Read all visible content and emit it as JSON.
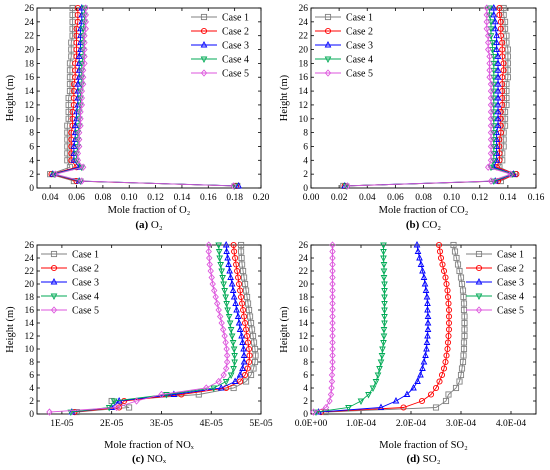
{
  "chart_data": [
    {
      "type": "line",
      "caption_letter": "(a)",
      "caption_text": "O₂",
      "xlabel": "Mole fraction of O₂",
      "ylabel": "Height (m)",
      "xlim": [
        0.03,
        0.2
      ],
      "ylim": [
        0,
        26
      ],
      "xticks": [
        0.04,
        0.06,
        0.08,
        0.1,
        0.12,
        0.14,
        0.16,
        0.18,
        0.2
      ],
      "xtick_labels": [
        "0.04",
        "0.06",
        "0.08",
        "0.10",
        "0.12",
        "0.14",
        "0.16",
        "0.18",
        "0.20"
      ],
      "yticks": [
        0,
        2,
        4,
        6,
        8,
        10,
        12,
        14,
        16,
        18,
        20,
        22,
        24,
        26
      ],
      "legend_position": "top-right",
      "y": [
        0.3,
        1,
        2,
        3,
        4,
        5,
        6,
        7,
        8,
        9,
        10,
        11,
        12,
        13,
        14,
        15,
        16,
        17,
        18,
        19,
        20,
        21,
        22,
        23,
        24,
        25,
        26
      ],
      "series": [
        {
          "name": "Case 1",
          "color": "#808080",
          "marker": "square",
          "values": [
            0.182,
            0.058,
            0.04,
            0.055,
            0.053,
            0.053,
            0.053,
            0.053,
            0.053,
            0.053,
            0.054,
            0.054,
            0.054,
            0.054,
            0.055,
            0.055,
            0.055,
            0.055,
            0.055,
            0.056,
            0.056,
            0.056,
            0.057,
            0.057,
            0.057,
            0.057,
            0.057
          ]
        },
        {
          "name": "Case 2",
          "color": "#ff0000",
          "marker": "circle",
          "values": [
            0.181,
            0.06,
            0.041,
            0.06,
            0.056,
            0.056,
            0.056,
            0.056,
            0.056,
            0.057,
            0.057,
            0.057,
            0.058,
            0.058,
            0.058,
            0.058,
            0.059,
            0.059,
            0.059,
            0.06,
            0.06,
            0.06,
            0.06,
            0.06,
            0.061,
            0.061,
            0.061
          ]
        },
        {
          "name": "Case 3",
          "color": "#0000ff",
          "marker": "triangle",
          "values": [
            0.183,
            0.062,
            0.042,
            0.062,
            0.058,
            0.058,
            0.058,
            0.059,
            0.059,
            0.059,
            0.06,
            0.06,
            0.061,
            0.061,
            0.061,
            0.061,
            0.062,
            0.062,
            0.062,
            0.062,
            0.063,
            0.063,
            0.063,
            0.063,
            0.064,
            0.064,
            0.064
          ]
        },
        {
          "name": "Case 4",
          "color": "#00aa55",
          "marker": "triangle-down",
          "values": [
            0.18,
            0.063,
            0.043,
            0.064,
            0.06,
            0.06,
            0.061,
            0.061,
            0.061,
            0.062,
            0.062,
            0.062,
            0.063,
            0.063,
            0.063,
            0.064,
            0.064,
            0.064,
            0.064,
            0.065,
            0.065,
            0.065,
            0.065,
            0.065,
            0.066,
            0.066,
            0.066
          ]
        },
        {
          "name": "Case 5",
          "color": "#dd55dd",
          "marker": "diamond",
          "values": [
            0.179,
            0.064,
            0.044,
            0.065,
            0.061,
            0.061,
            0.062,
            0.062,
            0.062,
            0.063,
            0.063,
            0.063,
            0.064,
            0.064,
            0.064,
            0.065,
            0.065,
            0.065,
            0.066,
            0.066,
            0.066,
            0.066,
            0.066,
            0.067,
            0.067,
            0.067,
            0.067
          ]
        }
      ]
    },
    {
      "type": "line",
      "caption_letter": "(b)",
      "caption_text": "CO₂",
      "xlabel": "Mole fraction of CO₂",
      "ylabel": "Height (m)",
      "xlim": [
        0.0,
        0.16
      ],
      "ylim": [
        0,
        26
      ],
      "xticks": [
        0.0,
        0.02,
        0.04,
        0.06,
        0.08,
        0.1,
        0.12,
        0.14,
        0.16
      ],
      "xtick_labels": [
        "0.00",
        "0.02",
        "0.04",
        "0.06",
        "0.08",
        "0.10",
        "0.12",
        "0.14",
        "0.16"
      ],
      "yticks": [
        0,
        2,
        4,
        6,
        8,
        10,
        12,
        14,
        16,
        18,
        20,
        22,
        24,
        26
      ],
      "legend_position": "top-left",
      "y": [
        0.3,
        1,
        2,
        3,
        4,
        5,
        6,
        7,
        8,
        9,
        10,
        11,
        12,
        13,
        14,
        15,
        16,
        17,
        18,
        19,
        20,
        21,
        22,
        23,
        24,
        25,
        26
      ],
      "series": [
        {
          "name": "Case 1",
          "color": "#808080",
          "marker": "square",
          "values": [
            0.023,
            0.135,
            0.145,
            0.134,
            0.136,
            0.136,
            0.137,
            0.137,
            0.137,
            0.138,
            0.138,
            0.138,
            0.139,
            0.139,
            0.139,
            0.139,
            0.14,
            0.14,
            0.14,
            0.14,
            0.14,
            0.139,
            0.139,
            0.138,
            0.138,
            0.137,
            0.137
          ]
        },
        {
          "name": "Case 2",
          "color": "#ff0000",
          "marker": "circle",
          "values": [
            0.024,
            0.133,
            0.146,
            0.132,
            0.134,
            0.134,
            0.134,
            0.134,
            0.135,
            0.135,
            0.135,
            0.135,
            0.136,
            0.136,
            0.136,
            0.136,
            0.136,
            0.137,
            0.137,
            0.136,
            0.136,
            0.136,
            0.135,
            0.135,
            0.135,
            0.134,
            0.134
          ]
        },
        {
          "name": "Case 3",
          "color": "#0000ff",
          "marker": "triangle",
          "values": [
            0.024,
            0.131,
            0.144,
            0.13,
            0.132,
            0.132,
            0.132,
            0.132,
            0.132,
            0.133,
            0.133,
            0.133,
            0.133,
            0.133,
            0.133,
            0.133,
            0.133,
            0.133,
            0.133,
            0.133,
            0.132,
            0.132,
            0.132,
            0.131,
            0.131,
            0.13,
            0.13
          ]
        },
        {
          "name": "Case 4",
          "color": "#00aa55",
          "marker": "triangle-down",
          "values": [
            0.025,
            0.13,
            0.143,
            0.128,
            0.13,
            0.13,
            0.13,
            0.13,
            0.13,
            0.13,
            0.13,
            0.13,
            0.13,
            0.13,
            0.13,
            0.13,
            0.13,
            0.13,
            0.13,
            0.13,
            0.129,
            0.129,
            0.128,
            0.128,
            0.128,
            0.127,
            0.127
          ]
        },
        {
          "name": "Case 5",
          "color": "#dd55dd",
          "marker": "diamond",
          "values": [
            0.026,
            0.128,
            0.142,
            0.126,
            0.128,
            0.128,
            0.128,
            0.128,
            0.128,
            0.128,
            0.128,
            0.128,
            0.128,
            0.128,
            0.128,
            0.128,
            0.127,
            0.127,
            0.127,
            0.127,
            0.126,
            0.126,
            0.126,
            0.125,
            0.125,
            0.125,
            0.125
          ]
        }
      ]
    },
    {
      "type": "line",
      "caption_letter": "(c)",
      "caption_text": "NOₓ",
      "xlabel": "Mole fraction of NOₓ",
      "ylabel": "Height (m)",
      "xlim": [
        5e-06,
        5e-05
      ],
      "ylim": [
        0,
        26
      ],
      "xticks": [
        1e-05,
        2e-05,
        3e-05,
        4e-05,
        5e-05
      ],
      "xtick_labels": [
        "1E-05",
        "2E-05",
        "3E-05",
        "4E-05",
        "5E-05"
      ],
      "yticks": [
        0,
        2,
        4,
        6,
        8,
        10,
        12,
        14,
        16,
        18,
        20,
        22,
        24,
        26
      ],
      "legend_position": "top-left",
      "y": [
        0.3,
        1,
        2,
        3,
        4,
        5,
        6,
        7,
        8,
        9,
        10,
        11,
        12,
        13,
        14,
        15,
        16,
        17,
        18,
        19,
        20,
        21,
        22,
        23,
        24,
        25,
        26
      ],
      "series": [
        {
          "name": "Case 1",
          "color": "#808080",
          "marker": "square",
          "values": [
            1.3e-05,
            2.35e-05,
            2e-05,
            3.75e-05,
            4.45e-05,
            4.7e-05,
            4.8e-05,
            4.85e-05,
            4.88e-05,
            4.89e-05,
            4.88e-05,
            4.86e-05,
            4.84e-05,
            4.82e-05,
            4.8e-05,
            4.78e-05,
            4.76e-05,
            4.74e-05,
            4.72e-05,
            4.7e-05,
            4.68e-05,
            4.66e-05,
            4.64e-05,
            4.62e-05,
            4.61e-05,
            4.6e-05,
            4.6e-05
          ]
        },
        {
          "name": "Case 2",
          "color": "#ff0000",
          "marker": "circle",
          "values": [
            1.25e-05,
            2.15e-05,
            2.25e-05,
            3.4e-05,
            4.3e-05,
            4.58e-05,
            4.68e-05,
            4.73e-05,
            4.76e-05,
            4.77e-05,
            4.76e-05,
            4.74e-05,
            4.72e-05,
            4.7e-05,
            4.68e-05,
            4.66e-05,
            4.64e-05,
            4.62e-05,
            4.6e-05,
            4.58e-05,
            4.56e-05,
            4.54e-05,
            4.52e-05,
            4.5e-05,
            4.48e-05,
            4.46e-05,
            4.45e-05
          ]
        },
        {
          "name": "Case 3",
          "color": "#0000ff",
          "marker": "triangle",
          "values": [
            1.2e-05,
            2e-05,
            2.15e-05,
            3.25e-05,
            4.2e-05,
            4.48e-05,
            4.58e-05,
            4.63e-05,
            4.66e-05,
            4.66e-05,
            4.65e-05,
            4.63e-05,
            4.61e-05,
            4.58e-05,
            4.56e-05,
            4.54e-05,
            4.51e-05,
            4.49e-05,
            4.46e-05,
            4.44e-05,
            4.42e-05,
            4.39e-05,
            4.37e-05,
            4.35e-05,
            4.33e-05,
            4.31e-05,
            4.3e-05
          ]
        },
        {
          "name": "Case 4",
          "color": "#00aa55",
          "marker": "triangle-down",
          "values": [
            1.18e-05,
            1.95e-05,
            2.05e-05,
            3.1e-05,
            4.05e-05,
            4.3e-05,
            4.4e-05,
            4.45e-05,
            4.47e-05,
            4.47e-05,
            4.46e-05,
            4.44e-05,
            4.42e-05,
            4.4e-05,
            4.38e-05,
            4.36e-05,
            4.33e-05,
            4.31e-05,
            4.29e-05,
            4.27e-05,
            4.25e-05,
            4.23e-05,
            4.21e-05,
            4.19e-05,
            4.17e-05,
            4.16e-05,
            4.15e-05
          ]
        },
        {
          "name": "Case 5",
          "color": "#dd55dd",
          "marker": "diamond",
          "values": [
            7.5e-06,
            2.1e-05,
            2.5e-05,
            3e-05,
            3.9e-05,
            4.15e-05,
            4.25e-05,
            4.3e-05,
            4.32e-05,
            4.32e-05,
            4.31e-05,
            4.29e-05,
            4.27e-05,
            4.24e-05,
            4.21e-05,
            4.18e-05,
            4.15e-05,
            4.12e-05,
            4.09e-05,
            4.06e-05,
            4.03e-05,
            4.01e-05,
            3.99e-05,
            3.97e-05,
            3.96e-05,
            3.95e-05,
            3.95e-05
          ]
        }
      ]
    },
    {
      "type": "line",
      "caption_letter": "(d)",
      "caption_text": "SO₂",
      "xlabel": "Mole fraction of SO₂",
      "ylabel": "Height (m)",
      "xlim": [
        0,
        0.00045
      ],
      "ylim": [
        0,
        26
      ],
      "xticks": [
        0,
        0.0001,
        0.0002,
        0.0003,
        0.0004
      ],
      "xtick_labels": [
        "0.0E+00",
        "1.0E-04",
        "2.0E-04",
        "3.0E-04",
        "4.0E-04"
      ],
      "yticks": [
        0,
        2,
        4,
        6,
        8,
        10,
        12,
        14,
        16,
        18,
        20,
        22,
        24,
        26
      ],
      "legend_position": "top-right",
      "y": [
        0.3,
        1,
        2,
        3,
        4,
        5,
        6,
        7,
        8,
        9,
        10,
        11,
        12,
        13,
        14,
        15,
        16,
        17,
        18,
        19,
        20,
        21,
        22,
        23,
        24,
        25,
        26
      ],
      "series": [
        {
          "name": "Case 1",
          "color": "#808080",
          "marker": "square",
          "values": [
            3e-05,
            0.00025,
            0.00027,
            0.000275,
            0.00029,
            0.000297,
            0.0003,
            0.000302,
            0.000304,
            0.000305,
            0.000306,
            0.000306,
            0.000307,
            0.000307,
            0.000307,
            0.000307,
            0.000306,
            0.000306,
            0.000305,
            0.000304,
            0.000302,
            0.0003,
            0.000297,
            0.000294,
            0.000291,
            0.000288,
            0.000285
          ]
        },
        {
          "name": "Case 2",
          "color": "#ff0000",
          "marker": "circle",
          "values": [
            2e-05,
            0.000185,
            0.000222,
            0.00024,
            0.00025,
            0.000257,
            0.000262,
            0.000266,
            0.000269,
            0.000271,
            0.000273,
            0.000274,
            0.000275,
            0.000276,
            0.000276,
            0.000276,
            0.000276,
            0.000275,
            0.000274,
            0.000273,
            0.000271,
            0.000269,
            0.000266,
            0.000263,
            0.00026,
            0.000258,
            0.000256
          ]
        },
        {
          "name": "Case 3",
          "color": "#0000ff",
          "marker": "triangle",
          "values": [
            1.5e-05,
            0.00014,
            0.00017,
            0.000192,
            0.000205,
            0.000213,
            0.000219,
            0.000223,
            0.000226,
            0.000229,
            0.000231,
            0.000232,
            0.000233,
            0.000234,
            0.000234,
            0.000234,
            0.000233,
            0.000233,
            0.000232,
            0.00023,
            0.000228,
            0.000226,
            0.000223,
            0.00022,
            0.000217,
            0.000214,
            0.000212
          ]
        },
        {
          "name": "Case 4",
          "color": "#00aa55",
          "marker": "triangle-down",
          "values": [
            1e-05,
            7.5e-05,
            0.0001,
            0.000115,
            0.000124,
            0.00013,
            0.000134,
            0.000137,
            0.00014,
            0.000142,
            0.000143,
            0.000145,
            0.000146,
            0.000146,
            0.000147,
            0.000147,
            0.000147,
            0.000147,
            0.000147,
            0.000147,
            0.000147,
            0.000146,
            0.000146,
            0.000146,
            0.000145,
            0.000145,
            0.000145
          ]
        },
        {
          "name": "Case 5",
          "color": "#dd55dd",
          "marker": "diamond",
          "values": [
            5e-06,
            3e-05,
            3.7e-05,
            4e-05,
            4.1e-05,
            4.2e-05,
            4.2e-05,
            4.3e-05,
            4.3e-05,
            4.3e-05,
            4.3e-05,
            4.3e-05,
            4.3e-05,
            4.3e-05,
            4.3e-05,
            4.3e-05,
            4.3e-05,
            4.3e-05,
            4.3e-05,
            4.3e-05,
            4.3e-05,
            4.3e-05,
            4.3e-05,
            4.3e-05,
            4.3e-05,
            4.3e-05,
            4.3e-05
          ]
        }
      ]
    }
  ]
}
